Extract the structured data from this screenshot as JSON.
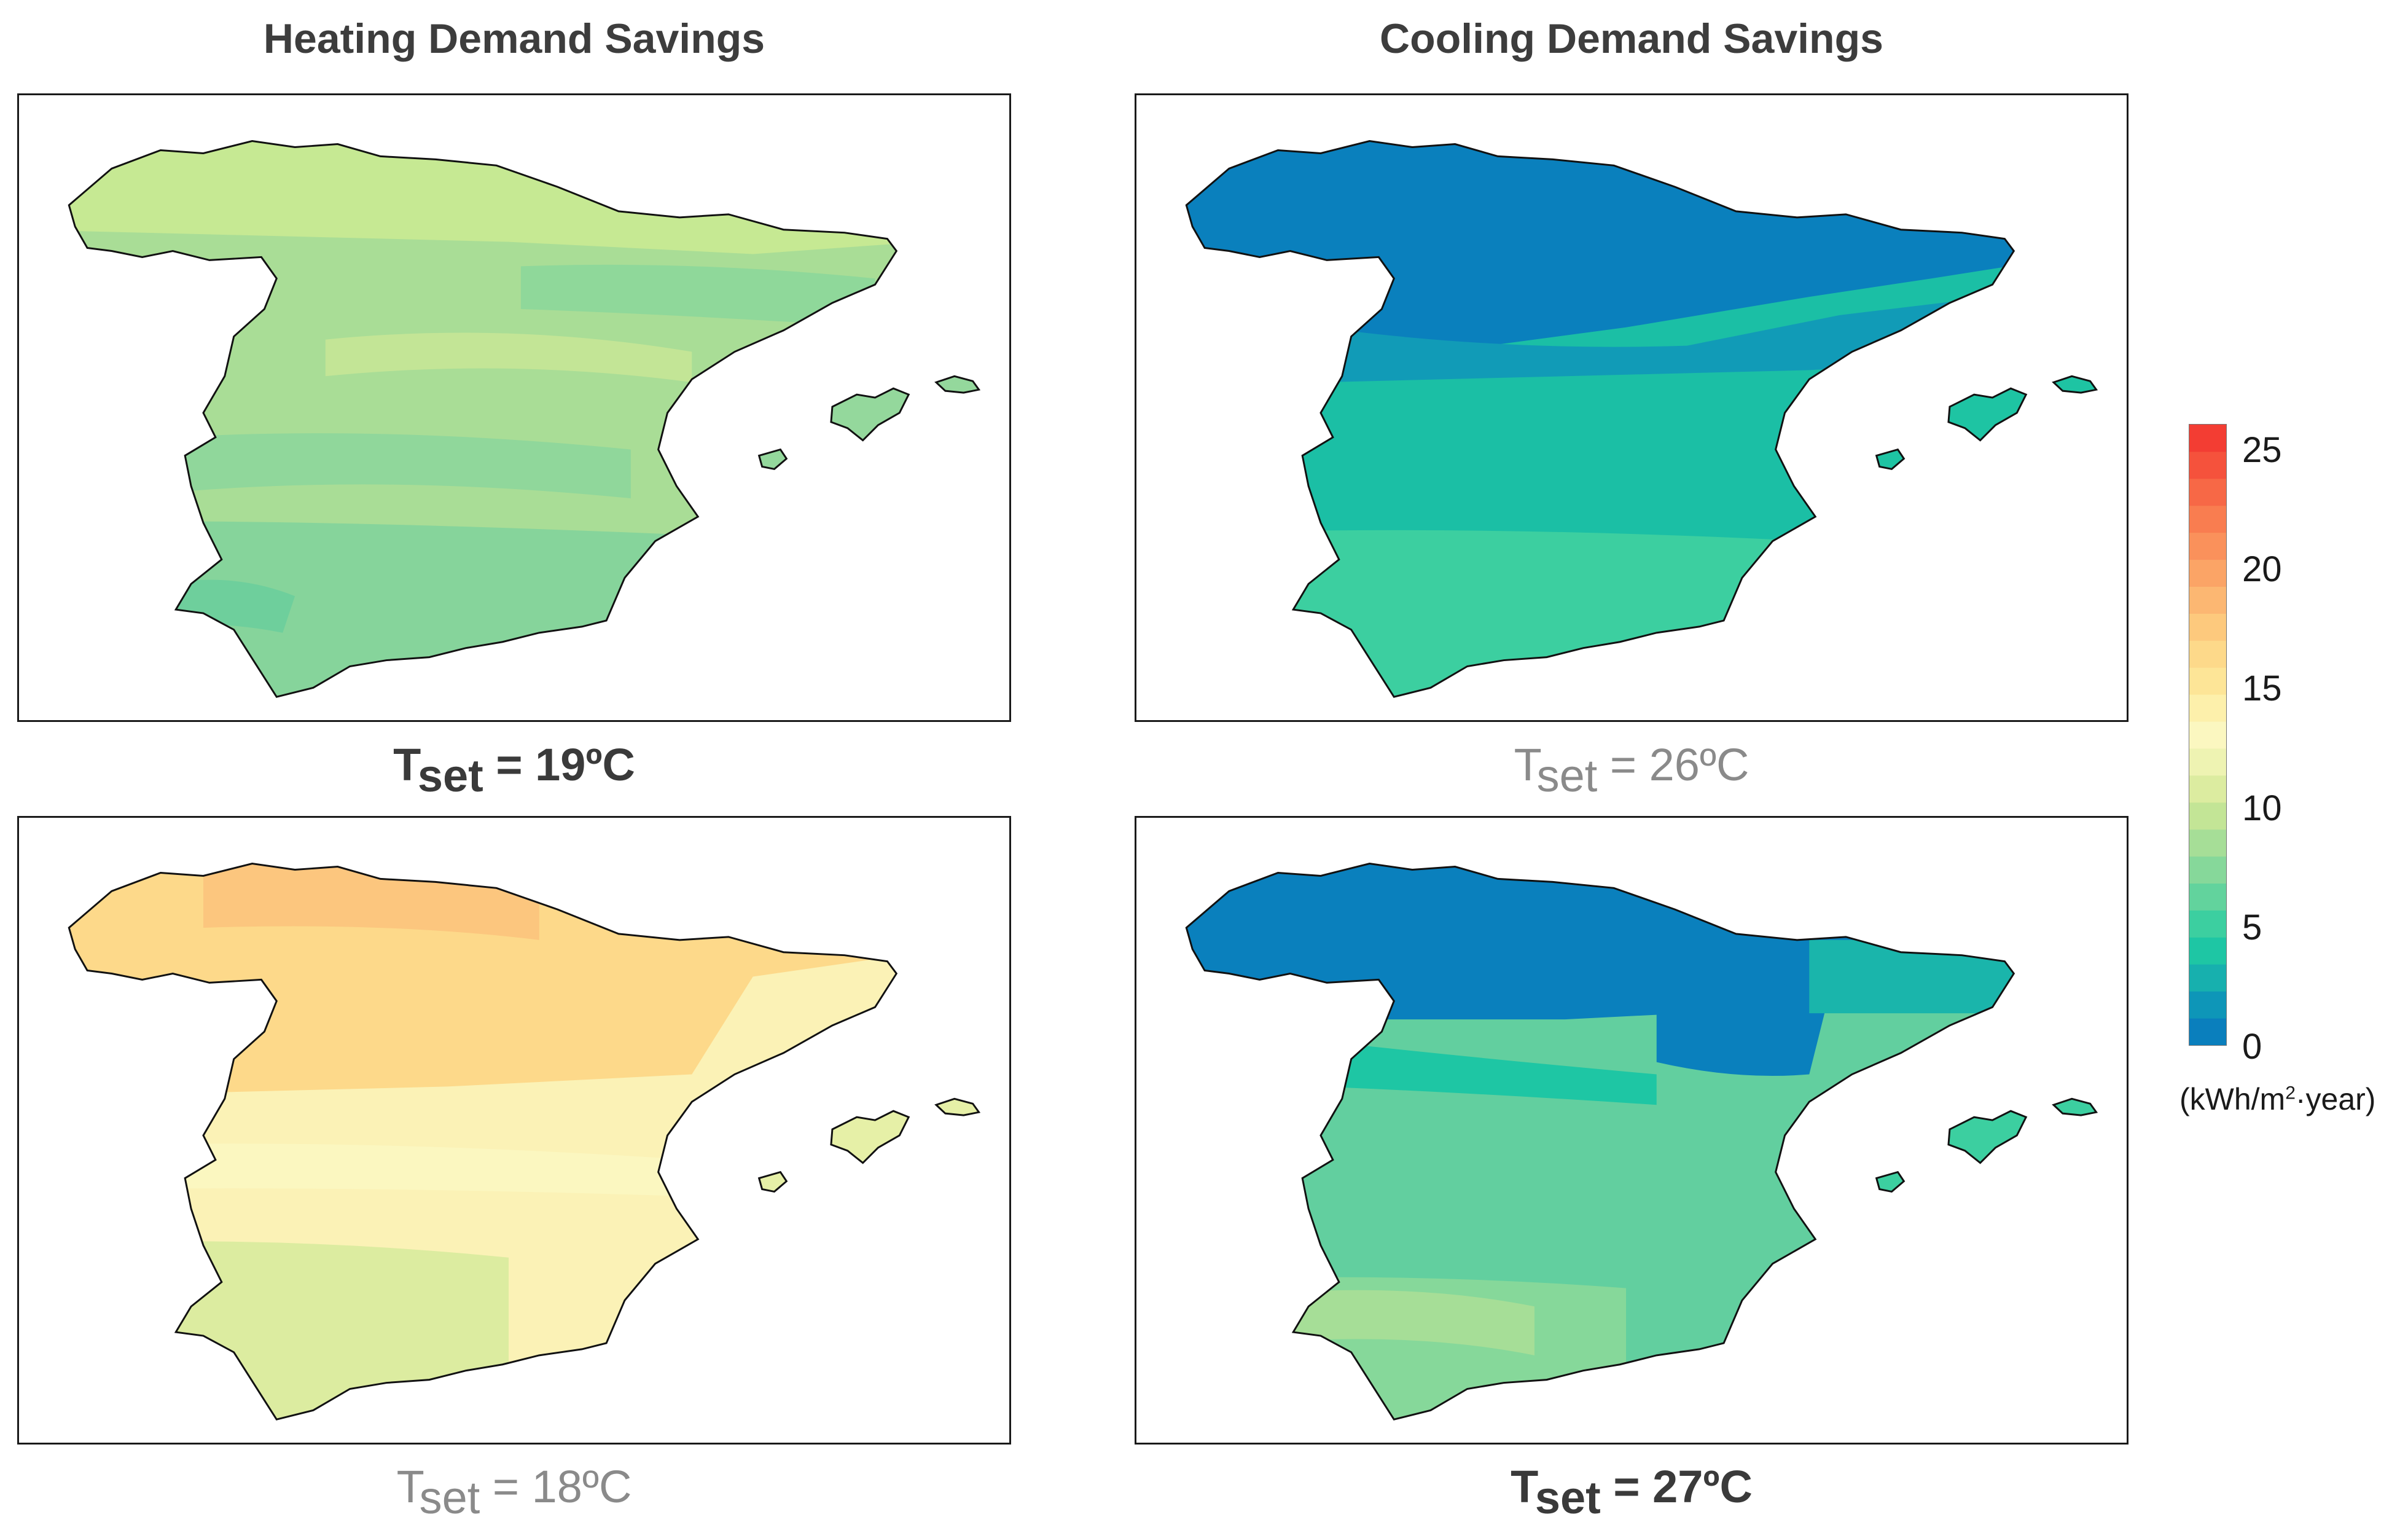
{
  "columns": {
    "heating_title": "Heating Demand Savings",
    "cooling_title": "Cooling Demand Savings"
  },
  "panels": {
    "heating_19": {
      "t_prefix": "T",
      "t_sub": "set",
      "t_value": " = 19ºC"
    },
    "cooling_26": {
      "t_prefix": "T",
      "t_sub": "set",
      "t_value": " = 26ºC"
    },
    "heating_18": {
      "t_prefix": "T",
      "t_sub": "set",
      "t_value": " = 18ºC"
    },
    "cooling_27": {
      "t_prefix": "T",
      "t_sub": "set",
      "t_value": " = 27ºC"
    }
  },
  "colorbar": {
    "ticks": [
      "25",
      "20",
      "15",
      "10",
      "5",
      "0"
    ],
    "unit_prefix": "(kWh/m",
    "unit_sup": "2",
    "unit_suffix": "·year)",
    "range": [
      0,
      26
    ],
    "colors": [
      "#0a7fbd",
      "#0e96b8",
      "#17b0ae",
      "#1ec6a4",
      "#3ccfa0",
      "#62d39d",
      "#86d89a",
      "#a6de97",
      "#c3e596",
      "#dceca0",
      "#eef3b2",
      "#fbf7c0",
      "#fdf0ab",
      "#fde597",
      "#fdd98a",
      "#fdc97d",
      "#fcb772",
      "#fba466",
      "#fa915b",
      "#f97d50",
      "#f76846",
      "#f5523c",
      "#f33d33"
    ]
  },
  "colors": {
    "heating_19_base": "#a9dd96",
    "heating_18_base": "#fbf2b6",
    "cooling_26_base": "#10a9b0",
    "cooling_27_base": "#62cf9f"
  }
}
